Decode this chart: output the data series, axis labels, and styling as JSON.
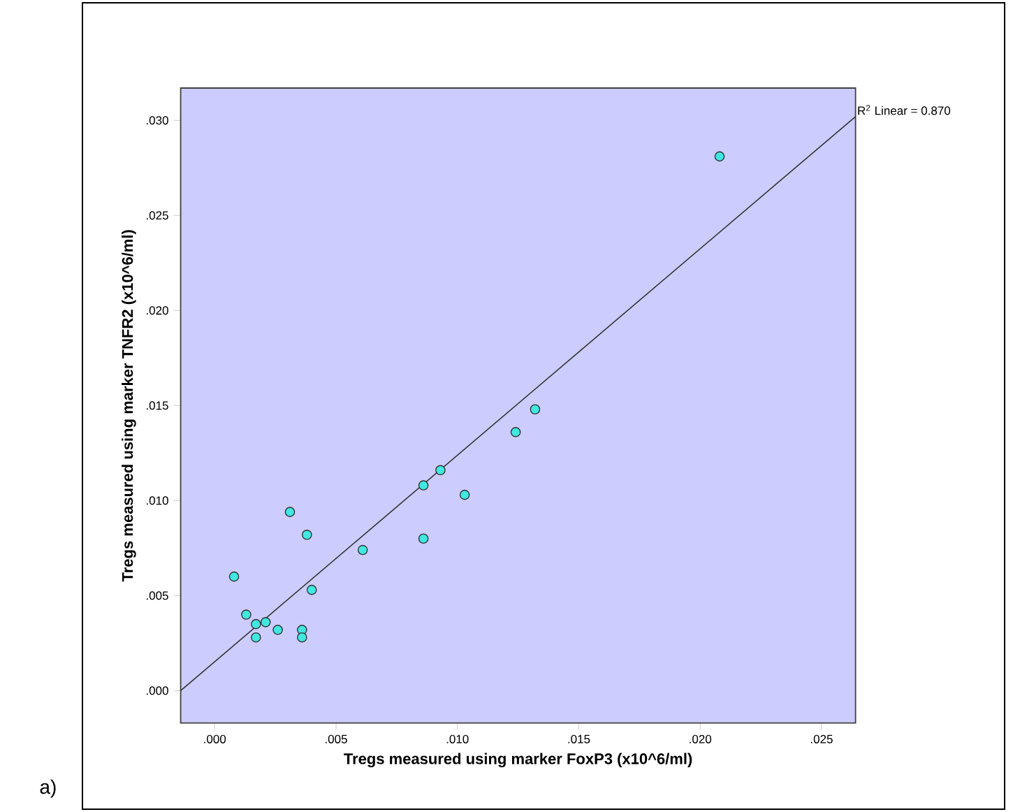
{
  "chart_data": {
    "type": "scatter",
    "xlabel": "Tregs measured using marker FoxP3 (x10^6/ml)",
    "ylabel": "Tregs measured using marker TNFR2 (x10^6/ml)",
    "annotations": [
      {
        "text": "R$^{2}$ Linear = 0.870",
        "x": 0.0264,
        "y": 0.0302
      },
      "a)"
    ],
    "series": [
      {
        "color": "#40e8e0",
        "marker": "circle",
        "x": [
          0.0008,
          0.0013,
          0.0017,
          0.0017,
          0.0021,
          0.0026,
          0.0031,
          0.0036,
          0.0036,
          0.0038,
          0.004,
          0.0061,
          0.0086,
          0.0086,
          0.0093,
          0.0103,
          0.0124,
          0.0132,
          0.0208
        ],
        "values": [
          0.006,
          0.004,
          0.0035,
          0.0028,
          0.0036,
          0.0032,
          0.0094,
          0.0032,
          0.0028,
          0.0082,
          0.0053,
          0.0074,
          0.008,
          0.0108,
          0.0116,
          0.0103,
          0.0136,
          0.0148,
          0.0281
        ]
      },
      {
        "type": "line",
        "color": "#333333",
        "marker": "none",
        "x": [
          -0.0014,
          0.0264
        ],
        "values": [
          0.0,
          0.0302
        ]
      }
    ],
    "xlim": [
      -0.0014,
      0.0264
    ],
    "ylim": [
      -0.0017,
      0.0317
    ],
    "xticks": [
      {
        "value": 0,
        "label": ".000"
      },
      {
        "value": 0.005,
        "label": ".005"
      },
      {
        "value": 0.01,
        "label": ".010"
      },
      {
        "value": 0.015,
        "label": ".015"
      },
      {
        "value": 0.02,
        "label": ".020"
      },
      {
        "value": 0.025,
        "label": ".025"
      }
    ],
    "yticks": [
      {
        "value": 0,
        "label": ".000"
      },
      {
        "value": 0.005,
        "label": ".005"
      },
      {
        "value": 0.01,
        "label": ".010"
      },
      {
        "value": 0.015,
        "label": ".015"
      },
      {
        "value": 0.02,
        "label": ".020"
      },
      {
        "value": 0.025,
        "label": ".025"
      },
      {
        "value": 0.03,
        "label": ".030"
      }
    ],
    "grid": false
  }
}
